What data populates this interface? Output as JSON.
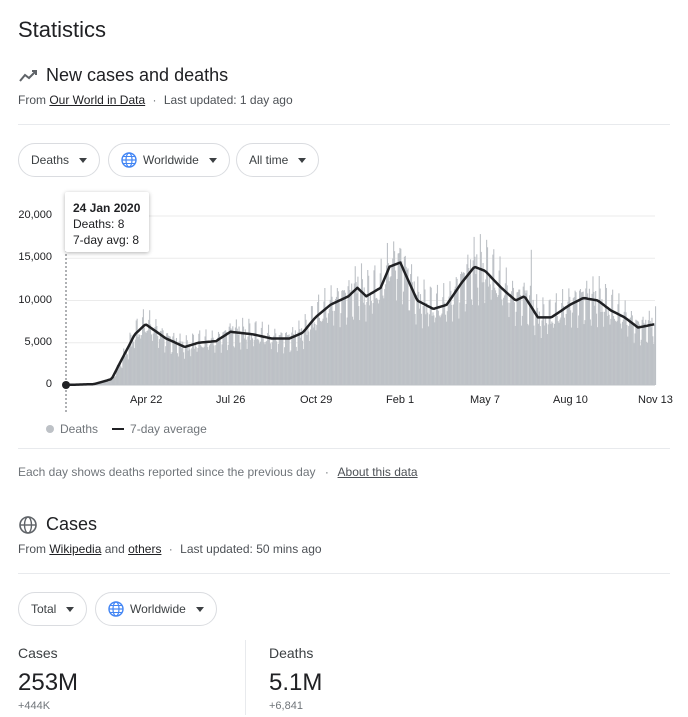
{
  "page_title": "Statistics",
  "section1": {
    "heading": "New cases and deaths",
    "icon": "trending-up-icon",
    "source_prefix": "From",
    "source_link": "Our World in Data",
    "updated": "Last updated: 1 day ago",
    "filters": {
      "metric": "Deaths",
      "region": "Worldwide",
      "range": "All time"
    },
    "tooltip": {
      "date": "24 Jan 2020",
      "deaths": "Deaths: 8",
      "avg": "7-day avg: 8"
    },
    "legend": {
      "bars": "Deaths",
      "line": "7-day average"
    },
    "note": "Each day shows deaths reported since the previous day",
    "note_link": "About this data"
  },
  "chart_data": {
    "type": "bar",
    "title": "",
    "xlabel": "",
    "ylabel": "",
    "ylim": [
      0,
      20000
    ],
    "y_ticks": [
      "20,000",
      "15,000",
      "10,000",
      "5,000",
      "0"
    ],
    "x_ticks": [
      "Apr 22",
      "Jul 26",
      "Oct 29",
      "Feb 1",
      "May 7",
      "Aug 10",
      "Nov 13"
    ],
    "series": [
      {
        "name": "7-day average",
        "x": [
          "2020-01-24",
          "2020-02-24",
          "2020-03-15",
          "2020-04-10",
          "2020-04-22",
          "2020-05-15",
          "2020-06-05",
          "2020-06-20",
          "2020-07-10",
          "2020-07-26",
          "2020-08-20",
          "2020-09-10",
          "2020-09-30",
          "2020-10-15",
          "2020-10-29",
          "2020-11-15",
          "2020-12-05",
          "2020-12-15",
          "2020-12-25",
          "2021-01-10",
          "2021-01-20",
          "2021-02-01",
          "2021-02-20",
          "2021-03-10",
          "2021-03-25",
          "2021-04-10",
          "2021-04-25",
          "2021-05-07",
          "2021-05-25",
          "2021-06-10",
          "2021-06-20",
          "2021-07-05",
          "2021-07-20",
          "2021-08-10",
          "2021-08-25",
          "2021-09-10",
          "2021-09-25",
          "2021-10-10",
          "2021-10-25",
          "2021-11-13"
        ],
        "values": [
          8,
          100,
          700,
          6000,
          7200,
          5500,
          4500,
          5000,
          5200,
          6300,
          6000,
          5500,
          5500,
          6200,
          8000,
          9500,
          10500,
          11500,
          10500,
          11500,
          14000,
          14500,
          10000,
          9000,
          9500,
          12000,
          14000,
          13500,
          11500,
          10000,
          10500,
          8000,
          8000,
          9500,
          10300,
          10000,
          8800,
          8000,
          6800,
          7200
        ]
      }
    ],
    "daily_bar_peak": 18000
  },
  "section2": {
    "heading": "Cases",
    "icon": "globe-icon",
    "source_prefix": "From",
    "source_link1": "Wikipedia",
    "source_and": "and",
    "source_link2": "others",
    "updated": "Last updated: 50 mins ago",
    "filters": {
      "metric": "Total",
      "region": "Worldwide"
    },
    "stats": [
      {
        "label": "Cases",
        "value": "253M",
        "delta": "+444K"
      },
      {
        "label": "Deaths",
        "value": "5.1M",
        "delta": "+6,841"
      }
    ]
  },
  "colors": {
    "bars": "#bdc1c6",
    "line": "#202124",
    "globe": "#4285f4"
  }
}
